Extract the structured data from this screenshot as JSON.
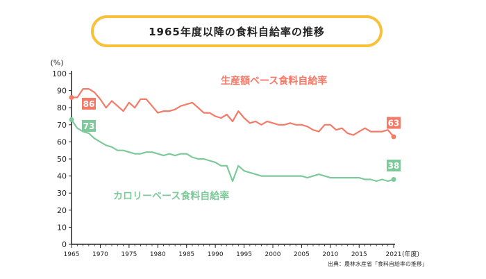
{
  "title": "1965年度以降の食料自給率の推移",
  "source": "出典：農林水産省「食料自給率の推移」",
  "colors": {
    "production": "#f47a67",
    "calorie": "#7dc99a",
    "title_border": "#f9c13a"
  },
  "chart_data": {
    "type": "line",
    "title": "1965年度以降の食料自給率の推移",
    "ylabel": "(%)",
    "xlabel_suffix": "(年度)",
    "ylim": [
      0,
      100
    ],
    "xlim": [
      1965,
      2021
    ],
    "yticks": [
      0,
      10,
      20,
      30,
      40,
      50,
      60,
      70,
      80,
      90,
      100
    ],
    "xticks": [
      1965,
      1970,
      1975,
      1980,
      1985,
      1990,
      1995,
      2000,
      2005,
      2010,
      2015,
      2021
    ],
    "grid": false,
    "series": [
      {
        "name": "生産額ベース食料自給率",
        "color": "#f47a67",
        "x": [
          1965,
          1966,
          1967,
          1968,
          1969,
          1970,
          1971,
          1972,
          1973,
          1974,
          1975,
          1976,
          1977,
          1978,
          1979,
          1980,
          1981,
          1982,
          1983,
          1984,
          1985,
          1986,
          1987,
          1988,
          1989,
          1990,
          1991,
          1992,
          1993,
          1994,
          1995,
          1996,
          1997,
          1998,
          1999,
          2000,
          2001,
          2002,
          2003,
          2004,
          2005,
          2006,
          2007,
          2008,
          2009,
          2010,
          2011,
          2012,
          2013,
          2014,
          2015,
          2016,
          2017,
          2018,
          2019,
          2020,
          2021
        ],
        "y": [
          86,
          86,
          91,
          91,
          89,
          85,
          80,
          84,
          81,
          78,
          83,
          80,
          85,
          85,
          81,
          77,
          78,
          78,
          79,
          81,
          82,
          83,
          80,
          77,
          77,
          75,
          74,
          76,
          72,
          78,
          74,
          71,
          72,
          70,
          72,
          71,
          70,
          70,
          71,
          70,
          70,
          69,
          67,
          66,
          70,
          70,
          67,
          68,
          65,
          64,
          66,
          68,
          66,
          66,
          66,
          67,
          63
        ],
        "start_label": "86",
        "end_label": "63"
      },
      {
        "name": "カロリーベース食料自給率",
        "color": "#7dc99a",
        "x": [
          1965,
          1966,
          1967,
          1968,
          1969,
          1970,
          1971,
          1972,
          1973,
          1974,
          1975,
          1976,
          1977,
          1978,
          1979,
          1980,
          1981,
          1982,
          1983,
          1984,
          1985,
          1986,
          1987,
          1988,
          1989,
          1990,
          1991,
          1992,
          1993,
          1994,
          1995,
          1996,
          1997,
          1998,
          1999,
          2000,
          2001,
          2002,
          2003,
          2004,
          2005,
          2006,
          2007,
          2008,
          2009,
          2010,
          2011,
          2012,
          2013,
          2014,
          2015,
          2016,
          2017,
          2018,
          2019,
          2020,
          2021
        ],
        "y": [
          73,
          68,
          66,
          65,
          62,
          60,
          58,
          57,
          55,
          55,
          54,
          53,
          53,
          54,
          54,
          53,
          52,
          53,
          52,
          53,
          53,
          51,
          50,
          50,
          49,
          48,
          46,
          46,
          37,
          46,
          43,
          42,
          41,
          40,
          40,
          40,
          40,
          40,
          40,
          40,
          40,
          39,
          40,
          41,
          40,
          39,
          39,
          39,
          39,
          39,
          39,
          38,
          38,
          37,
          38,
          37,
          38
        ],
        "start_label": "73",
        "end_label": "38"
      }
    ]
  }
}
